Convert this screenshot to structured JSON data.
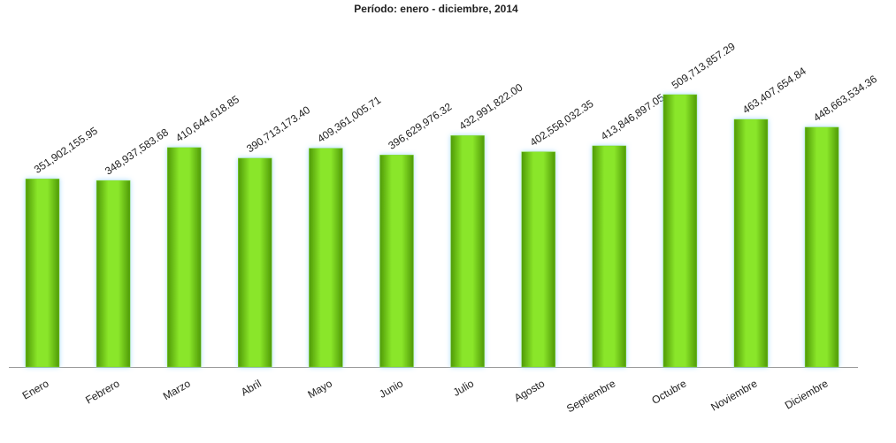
{
  "chart_data": {
    "type": "bar",
    "title": "Período: enero - diciembre, 2014",
    "categories": [
      "Enero",
      "Febrero",
      "Marzo",
      "Abril",
      "Mayo",
      "Junio",
      "Julio",
      "Agosto",
      "Septiembre",
      "Octubre",
      "Noviembre",
      "Diciembre"
    ],
    "values": [
      351902155.95,
      348937583.68,
      410644618.85,
      390713173.4,
      409361005.71,
      396629976.32,
      432991822.0,
      402558032.35,
      413846897.05,
      509713857.29,
      463407654.84,
      448663534.36
    ],
    "value_labels": [
      "351,902,155.95",
      "348,937,583.68",
      "410,644,618.85",
      "390,713,173.40",
      "409,361,005.71",
      "396,629,976.32",
      "432,991,822.00",
      "402,558,032.35",
      "413,846,897.05",
      "509,713,857.29",
      "463,407,654.84",
      "448,663,534.36"
    ],
    "color": "#7fd81c"
  }
}
